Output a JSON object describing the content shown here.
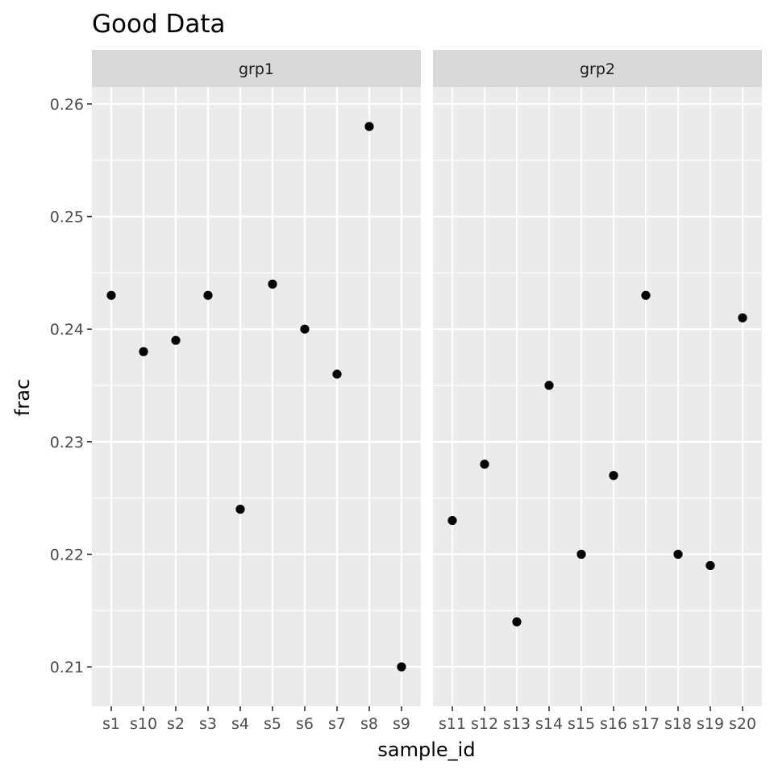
{
  "chart_data": {
    "type": "scatter",
    "title": "Good Data",
    "xlabel": "sample_id",
    "ylabel": "frac",
    "ylim": [
      0.2065,
      0.2615
    ],
    "y_ticks": [
      0.21,
      0.22,
      0.23,
      0.24,
      0.25,
      0.26
    ],
    "y_tick_labels": [
      "0.21",
      "0.22",
      "0.23",
      "0.24",
      "0.25",
      "0.26"
    ],
    "grid": true,
    "legend": "none",
    "facets": [
      {
        "label": "grp1",
        "categories": [
          "s1",
          "s10",
          "s2",
          "s3",
          "s4",
          "s5",
          "s6",
          "s7",
          "s8",
          "s9"
        ],
        "values": [
          0.243,
          0.238,
          0.239,
          0.243,
          0.224,
          0.244,
          0.24,
          0.236,
          0.258,
          0.21
        ]
      },
      {
        "label": "grp2",
        "categories": [
          "s11",
          "s12",
          "s13",
          "s14",
          "s15",
          "s16",
          "s17",
          "s18",
          "s19",
          "s20"
        ],
        "values": [
          0.223,
          0.228,
          0.214,
          0.235,
          0.22,
          0.227,
          0.243,
          0.22,
          0.219,
          0.241
        ]
      }
    ],
    "colors": {
      "panel": "#EBEBEB",
      "strip": "#D9D9D9",
      "grid": "#FFFFFF",
      "point": "#000000"
    }
  }
}
